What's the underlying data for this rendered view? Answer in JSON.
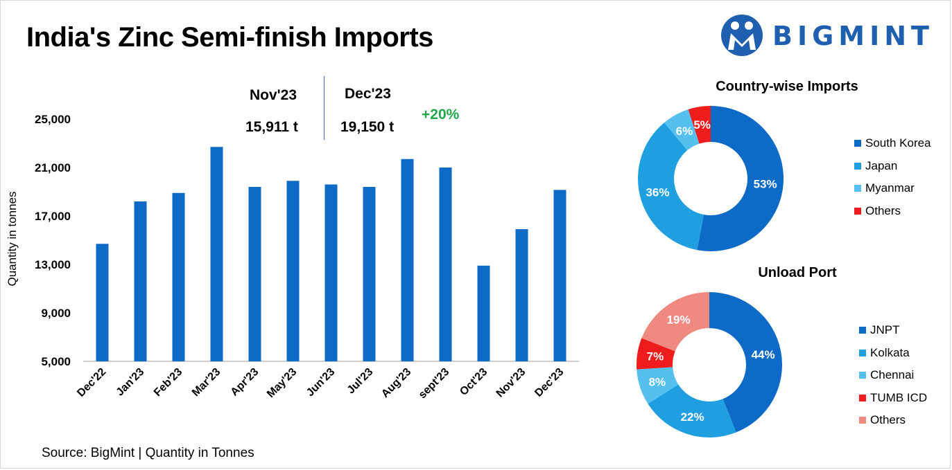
{
  "title": "India's Zinc Semi-finish Imports",
  "brand": {
    "name": "BIGMINT",
    "color": "#1f5fb0"
  },
  "kpi": {
    "prev_label": "Nov'23",
    "prev_value": "15,911 t",
    "curr_label": "Dec'23",
    "curr_value": "19,150 t",
    "change": "+20%"
  },
  "source": "Source: BigMint | Quantity in Tonnes",
  "chart_data": [
    {
      "type": "bar",
      "ylabel": "Quantity in tonnes",
      "categories": [
        "Dec'22",
        "Jan'23",
        "Feb'23",
        "Mar'23",
        "Apr'23",
        "May'23",
        "Jun'23",
        "Jul'23",
        "Aug'23",
        "sept'23",
        "Oct'23",
        "Nov'23",
        "Dec'23"
      ],
      "values": [
        14700,
        18200,
        18900,
        22700,
        19400,
        19900,
        19600,
        19400,
        21700,
        21000,
        12900,
        15911,
        19150
      ],
      "ylim": [
        5000,
        25000
      ],
      "yticks": [
        "5,000",
        "9,000",
        "13,000",
        "17,000",
        "21,000",
        "25,000"
      ],
      "ytick_values": [
        5000,
        9000,
        13000,
        17000,
        21000,
        25000
      ],
      "color": "#0e6ac7",
      "grid": false
    },
    {
      "type": "pie",
      "title": "Country-wise Imports",
      "labels": [
        "South Korea",
        "Japan",
        "Myanmar",
        "Others"
      ],
      "values": [
        53,
        36,
        6,
        5
      ],
      "value_labels": [
        "53%",
        "36%",
        "6%",
        "5%"
      ],
      "colors": [
        "#0e6ac7",
        "#1f9fe0",
        "#55bfee",
        "#ee1c1c"
      ],
      "legend": "right"
    },
    {
      "type": "pie",
      "title": "Unload Port",
      "labels": [
        "JNPT",
        "Kolkata",
        "Chennai",
        "TUMB ICD",
        "Others"
      ],
      "values": [
        44,
        22,
        8,
        7,
        19
      ],
      "value_labels": [
        "44%",
        "22%",
        "8%",
        "7%",
        "19%"
      ],
      "colors": [
        "#0e6ac7",
        "#1f9fe0",
        "#55bfee",
        "#ee1c1c",
        "#f08a80"
      ],
      "legend": "right"
    }
  ]
}
